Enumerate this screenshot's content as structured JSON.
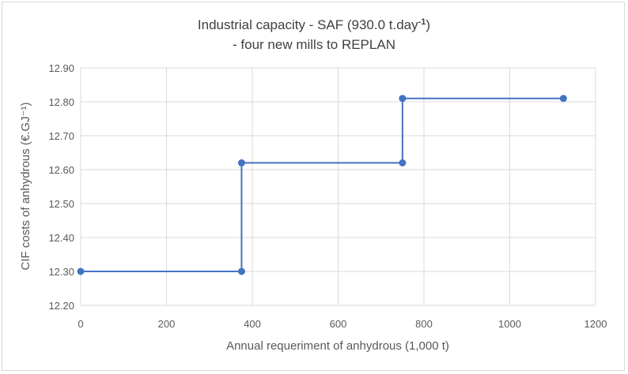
{
  "chart_data": {
    "type": "line",
    "title_line1": "Industrial capacity - SAF (930.0 t.day",
    "title_sup": "-1",
    "title_line1_end": ")",
    "title_line2": "- four new mills to REPLAN",
    "xlabel": "Annual requeriment of anhydrous (1,000 t)",
    "ylabel": "CIF costs of anhydrous (€.GJ⁻¹)",
    "xlim": [
      0,
      1200
    ],
    "ylim": [
      12.2,
      12.9
    ],
    "x_ticks": [
      0,
      200,
      400,
      600,
      800,
      1000,
      1200
    ],
    "x_tick_labels": [
      "0",
      "200",
      "400",
      "600",
      "800",
      "1000",
      "1200"
    ],
    "y_ticks": [
      12.2,
      12.3,
      12.4,
      12.5,
      12.6,
      12.7,
      12.8,
      12.9
    ],
    "y_tick_labels": [
      "12.20",
      "12.30",
      "12.40",
      "12.50",
      "12.60",
      "12.70",
      "12.80",
      "12.90"
    ],
    "grid": true,
    "series": [
      {
        "color": "#4472C4",
        "points": [
          {
            "x": 0,
            "y": 12.3
          },
          {
            "x": 375,
            "y": 12.3
          },
          {
            "x": 375,
            "y": 12.62
          },
          {
            "x": 750,
            "y": 12.62
          },
          {
            "x": 750,
            "y": 12.81
          },
          {
            "x": 1125,
            "y": 12.81
          }
        ]
      }
    ]
  }
}
